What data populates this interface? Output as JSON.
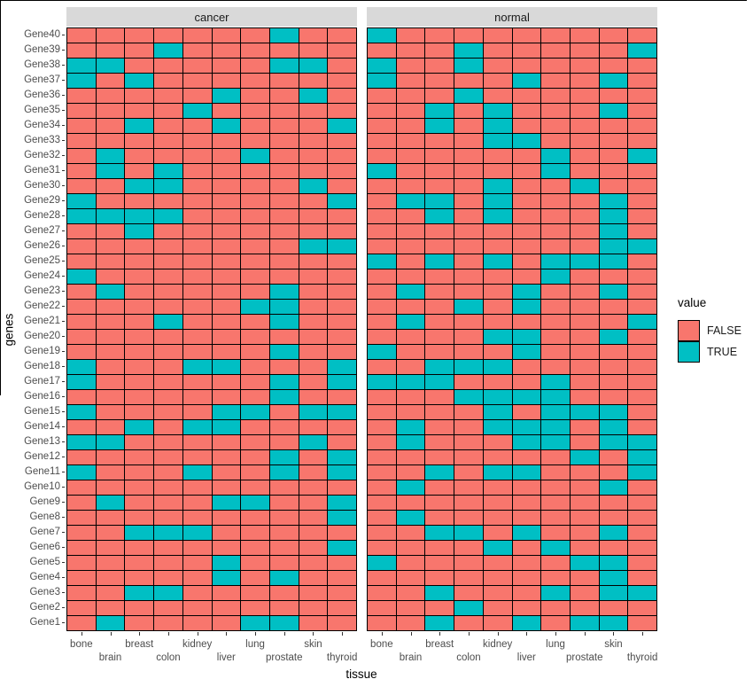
{
  "figure": {
    "x_axis_title": "tissue",
    "y_axis_title": "genes",
    "facets": {
      "left": "cancer",
      "right": "normal"
    },
    "legend": {
      "title": "value",
      "entries": [
        {
          "label": "FALSE",
          "color": "#F8766D"
        },
        {
          "label": "TRUE",
          "color": "#00BFC4"
        }
      ]
    },
    "colors": {
      "false_fill": "#F8766D",
      "true_fill": "#00BFC4",
      "strip_bg": "#D9D9D9",
      "cell_border": "#000000",
      "axis_text": "#4D4D4D"
    }
  },
  "chart_data": {
    "type": "heatmap",
    "title": "",
    "xlabel": "tissue",
    "ylabel": "genes",
    "legend_position": "right",
    "grid": false,
    "facets": [
      "cancer",
      "normal"
    ],
    "tissues": [
      "bone",
      "brain",
      "breast",
      "colon",
      "kidney",
      "liver",
      "lung",
      "prostate",
      "skin",
      "thyroid"
    ],
    "genes_top_to_bottom": [
      "Gene40",
      "Gene39",
      "Gene38",
      "Gene37",
      "Gene36",
      "Gene35",
      "Gene34",
      "Gene33",
      "Gene32",
      "Gene31",
      "Gene30",
      "Gene29",
      "Gene28",
      "Gene27",
      "Gene26",
      "Gene25",
      "Gene24",
      "Gene23",
      "Gene22",
      "Gene21",
      "Gene20",
      "Gene19",
      "Gene18",
      "Gene17",
      "Gene16",
      "Gene15",
      "Gene14",
      "Gene13",
      "Gene12",
      "Gene11",
      "Gene10",
      "Gene9",
      "Gene8",
      "Gene7",
      "Gene6",
      "Gene5",
      "Gene4",
      "Gene3",
      "Gene2",
      "Gene1"
    ],
    "values_legend": "1 = TRUE (teal), 0 = FALSE (salmon); rows ordered as genes_top_to_bottom, columns as tissues",
    "series": {
      "cancer": [
        [
          0,
          0,
          0,
          0,
          0,
          0,
          0,
          1,
          0,
          0
        ],
        [
          0,
          0,
          0,
          1,
          0,
          0,
          0,
          0,
          0,
          0
        ],
        [
          1,
          1,
          0,
          0,
          0,
          0,
          0,
          1,
          1,
          0
        ],
        [
          1,
          0,
          1,
          0,
          0,
          0,
          0,
          0,
          0,
          0
        ],
        [
          0,
          0,
          0,
          0,
          0,
          1,
          0,
          0,
          1,
          0
        ],
        [
          0,
          0,
          0,
          0,
          1,
          0,
          0,
          0,
          0,
          0
        ],
        [
          0,
          0,
          1,
          0,
          0,
          1,
          0,
          0,
          0,
          1
        ],
        [
          0,
          0,
          0,
          0,
          0,
          0,
          0,
          0,
          0,
          0
        ],
        [
          0,
          1,
          0,
          0,
          0,
          0,
          1,
          0,
          0,
          0
        ],
        [
          0,
          1,
          0,
          1,
          0,
          0,
          0,
          0,
          0,
          0
        ],
        [
          0,
          0,
          1,
          1,
          0,
          0,
          0,
          0,
          1,
          0
        ],
        [
          1,
          0,
          0,
          0,
          0,
          0,
          0,
          0,
          0,
          1
        ],
        [
          1,
          1,
          1,
          1,
          0,
          0,
          0,
          0,
          0,
          0
        ],
        [
          0,
          0,
          1,
          0,
          0,
          0,
          0,
          0,
          0,
          0
        ],
        [
          0,
          0,
          0,
          0,
          0,
          0,
          0,
          0,
          1,
          1
        ],
        [
          0,
          0,
          0,
          0,
          0,
          0,
          0,
          0,
          0,
          0
        ],
        [
          1,
          0,
          0,
          0,
          0,
          0,
          0,
          0,
          0,
          0
        ],
        [
          0,
          1,
          0,
          0,
          0,
          0,
          0,
          1,
          0,
          0
        ],
        [
          0,
          0,
          0,
          0,
          0,
          0,
          1,
          1,
          0,
          0
        ],
        [
          0,
          0,
          0,
          1,
          0,
          0,
          0,
          1,
          0,
          0
        ],
        [
          0,
          0,
          0,
          0,
          0,
          0,
          0,
          0,
          0,
          0
        ],
        [
          0,
          0,
          0,
          0,
          0,
          0,
          0,
          1,
          0,
          0
        ],
        [
          1,
          0,
          0,
          0,
          1,
          1,
          0,
          0,
          0,
          1
        ],
        [
          1,
          0,
          0,
          0,
          0,
          0,
          0,
          1,
          0,
          1
        ],
        [
          0,
          0,
          0,
          0,
          0,
          0,
          0,
          1,
          0,
          0
        ],
        [
          1,
          0,
          0,
          0,
          0,
          1,
          1,
          0,
          1,
          1
        ],
        [
          0,
          0,
          1,
          0,
          1,
          1,
          0,
          0,
          0,
          0
        ],
        [
          1,
          1,
          0,
          0,
          0,
          0,
          0,
          0,
          1,
          0
        ],
        [
          0,
          0,
          0,
          0,
          0,
          0,
          0,
          1,
          0,
          1
        ],
        [
          1,
          0,
          0,
          0,
          1,
          0,
          0,
          1,
          0,
          1
        ],
        [
          0,
          0,
          0,
          0,
          0,
          0,
          0,
          0,
          0,
          0
        ],
        [
          0,
          1,
          0,
          0,
          0,
          1,
          1,
          0,
          0,
          1
        ],
        [
          0,
          0,
          0,
          0,
          0,
          0,
          0,
          0,
          0,
          1
        ],
        [
          0,
          0,
          1,
          1,
          1,
          0,
          0,
          0,
          0,
          0
        ],
        [
          0,
          0,
          0,
          0,
          0,
          0,
          0,
          0,
          0,
          1
        ],
        [
          0,
          0,
          0,
          0,
          0,
          1,
          0,
          0,
          0,
          0
        ],
        [
          0,
          0,
          0,
          0,
          0,
          1,
          0,
          1,
          0,
          0
        ],
        [
          0,
          0,
          1,
          1,
          0,
          0,
          0,
          0,
          0,
          0
        ],
        [
          0,
          0,
          0,
          0,
          0,
          0,
          0,
          0,
          0,
          0
        ],
        [
          0,
          1,
          0,
          0,
          0,
          0,
          1,
          1,
          0,
          0
        ]
      ],
      "normal": [
        [
          1,
          0,
          0,
          0,
          0,
          0,
          0,
          0,
          0,
          0
        ],
        [
          0,
          0,
          0,
          1,
          0,
          0,
          0,
          0,
          0,
          1
        ],
        [
          1,
          0,
          0,
          1,
          0,
          0,
          0,
          0,
          0,
          0
        ],
        [
          1,
          0,
          0,
          0,
          0,
          1,
          0,
          0,
          1,
          0
        ],
        [
          0,
          0,
          0,
          1,
          0,
          0,
          0,
          0,
          0,
          0
        ],
        [
          0,
          0,
          1,
          0,
          1,
          0,
          0,
          0,
          1,
          0
        ],
        [
          0,
          0,
          1,
          0,
          1,
          0,
          0,
          0,
          0,
          0
        ],
        [
          0,
          0,
          0,
          0,
          1,
          1,
          0,
          0,
          0,
          0
        ],
        [
          0,
          0,
          0,
          0,
          0,
          0,
          1,
          0,
          0,
          1
        ],
        [
          1,
          0,
          0,
          0,
          0,
          0,
          1,
          0,
          0,
          0
        ],
        [
          0,
          0,
          0,
          0,
          1,
          0,
          0,
          1,
          0,
          0
        ],
        [
          0,
          1,
          1,
          0,
          1,
          0,
          0,
          0,
          1,
          0
        ],
        [
          0,
          0,
          1,
          0,
          1,
          0,
          0,
          0,
          1,
          0
        ],
        [
          0,
          0,
          0,
          0,
          0,
          0,
          0,
          0,
          1,
          0
        ],
        [
          0,
          0,
          0,
          0,
          0,
          0,
          0,
          0,
          1,
          1
        ],
        [
          1,
          0,
          1,
          0,
          1,
          0,
          1,
          1,
          1,
          0
        ],
        [
          0,
          0,
          0,
          0,
          0,
          0,
          1,
          0,
          0,
          0
        ],
        [
          0,
          1,
          0,
          0,
          0,
          1,
          0,
          0,
          1,
          0
        ],
        [
          0,
          0,
          0,
          1,
          0,
          1,
          0,
          0,
          0,
          0
        ],
        [
          0,
          1,
          0,
          0,
          0,
          0,
          0,
          0,
          0,
          1
        ],
        [
          0,
          0,
          0,
          0,
          1,
          1,
          0,
          0,
          1,
          0
        ],
        [
          1,
          0,
          0,
          0,
          0,
          1,
          0,
          0,
          0,
          0
        ],
        [
          0,
          0,
          1,
          1,
          1,
          0,
          0,
          0,
          0,
          0
        ],
        [
          1,
          1,
          1,
          0,
          0,
          0,
          1,
          0,
          0,
          0
        ],
        [
          0,
          0,
          0,
          1,
          1,
          1,
          1,
          0,
          0,
          0
        ],
        [
          0,
          0,
          0,
          0,
          1,
          0,
          1,
          1,
          1,
          0
        ],
        [
          0,
          1,
          0,
          0,
          1,
          1,
          1,
          0,
          1,
          0
        ],
        [
          0,
          1,
          0,
          0,
          0,
          1,
          1,
          0,
          1,
          1
        ],
        [
          0,
          0,
          0,
          0,
          0,
          0,
          0,
          1,
          0,
          1
        ],
        [
          0,
          0,
          1,
          0,
          1,
          1,
          0,
          0,
          0,
          1
        ],
        [
          0,
          1,
          0,
          0,
          0,
          0,
          0,
          0,
          1,
          0
        ],
        [
          0,
          0,
          0,
          0,
          0,
          0,
          0,
          0,
          0,
          0
        ],
        [
          0,
          1,
          0,
          0,
          0,
          0,
          0,
          0,
          0,
          0
        ],
        [
          0,
          0,
          1,
          1,
          0,
          1,
          0,
          0,
          1,
          0
        ],
        [
          0,
          0,
          0,
          0,
          1,
          0,
          1,
          0,
          0,
          0
        ],
        [
          1,
          0,
          0,
          0,
          0,
          0,
          0,
          1,
          1,
          0
        ],
        [
          0,
          0,
          0,
          0,
          0,
          0,
          0,
          0,
          1,
          0
        ],
        [
          0,
          0,
          1,
          0,
          0,
          0,
          1,
          0,
          1,
          1
        ],
        [
          0,
          0,
          0,
          1,
          0,
          0,
          0,
          0,
          0,
          0
        ],
        [
          0,
          0,
          1,
          0,
          0,
          1,
          0,
          1,
          1,
          0
        ]
      ]
    }
  }
}
